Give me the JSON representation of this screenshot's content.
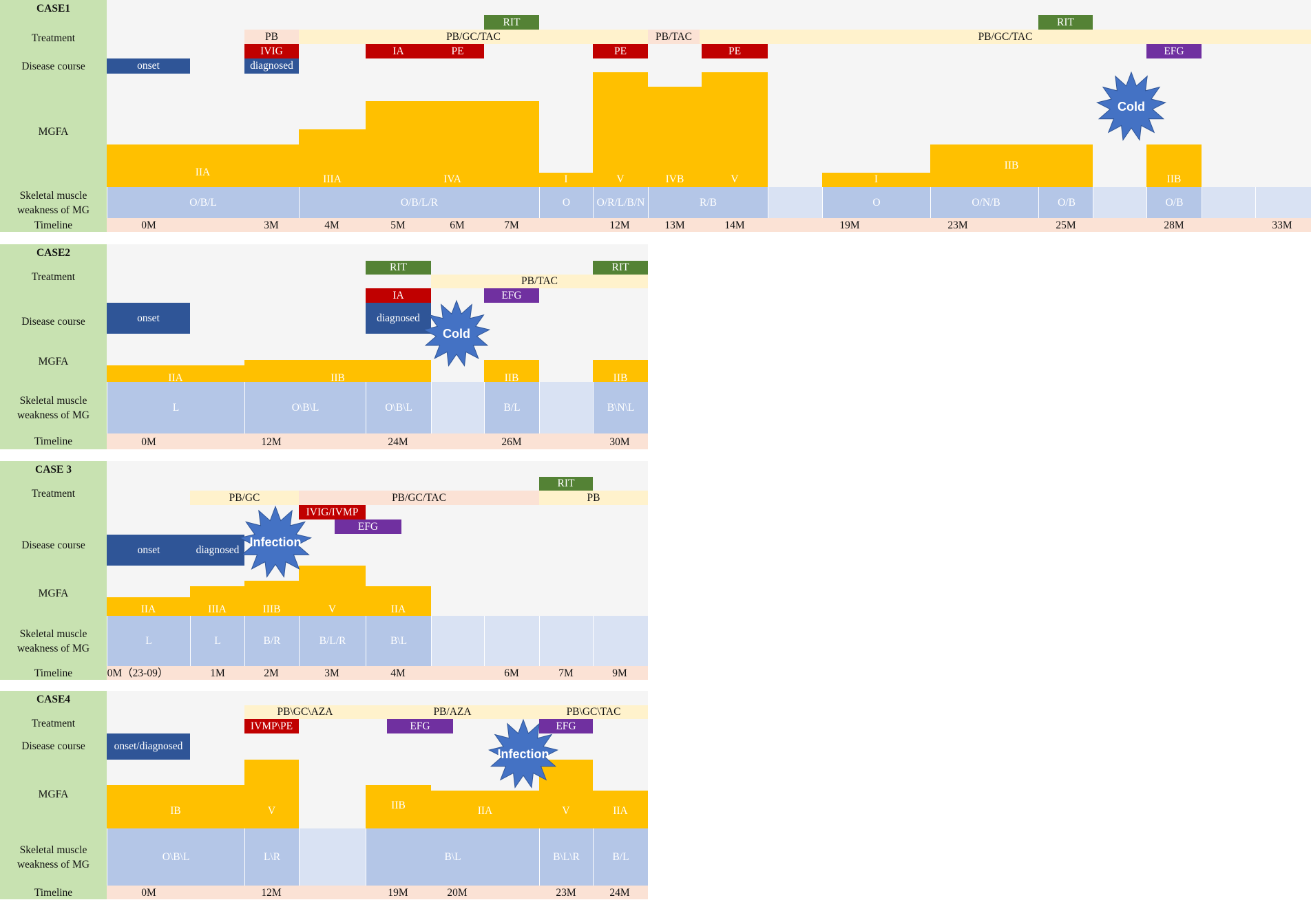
{
  "row_labels": {
    "treatment": "Treatment",
    "disease_course": "Disease course",
    "mgfa": "MGFA",
    "muscle": "Skeletal muscle\nweakness of MG",
    "timeline": "Timeline"
  },
  "colors": {
    "panel_bg": "#f5f5f5",
    "label_bg": "#c8e2b1",
    "light_yellow": "#fff2cc",
    "light_pink": "#fbe2d5",
    "rit_green": "#548235",
    "ivig_red": "#c00000",
    "ia_red": "#c00000",
    "efg_purple": "#7030a0",
    "disease_blue": "#2f5597",
    "mgfa_orange": "#ffc000",
    "muscle_blue": "#b4c6e7",
    "muscle_light": "#d9e2f3",
    "burst_blue": "#4472c4"
  },
  "cases": [
    {
      "title": "CASE1",
      "treatment": [
        {
          "label": "RIT",
          "type": "rit"
        },
        {
          "label": "RIT",
          "type": "rit"
        },
        {
          "label": "PB",
          "type": "pink"
        },
        {
          "label": "PB/GC/TAC",
          "type": "yellow"
        },
        {
          "label": "PB/TAC",
          "type": "pink"
        },
        {
          "label": "PB/GC/TAC",
          "type": "yellow"
        },
        {
          "label": "IVIG",
          "type": "red"
        },
        {
          "label": "IA",
          "type": "red"
        },
        {
          "label": "PE",
          "type": "red"
        },
        {
          "label": "PE",
          "type": "red"
        },
        {
          "label": "PE",
          "type": "red"
        },
        {
          "label": "EFG",
          "type": "purple"
        }
      ],
      "disease": [
        {
          "label": "onset"
        },
        {
          "label": "diagnosed"
        }
      ],
      "mgfa": [
        {
          "label": "IIA",
          "level": 2
        },
        {
          "label": "IIIA",
          "level": 3
        },
        {
          "label": "IVA",
          "level": 4
        },
        {
          "label": "I",
          "level": 1
        },
        {
          "label": "V",
          "level": 5
        },
        {
          "label": "IVB",
          "level": 4
        },
        {
          "label": "V",
          "level": 5
        },
        {
          "label": "I",
          "level": 1
        },
        {
          "label": "IIB",
          "level": 2
        },
        {
          "label": "IIB",
          "level": 2
        }
      ],
      "muscle": [
        "O/B/L",
        "O/B/L/R",
        "O",
        "O/R/L/B/N",
        "R/B",
        "",
        "O",
        "O/N/B",
        "O/B",
        "",
        "O/B",
        "",
        ""
      ],
      "timeline": [
        "0M",
        "3M",
        "4M",
        "5M",
        "6M",
        "7M",
        "12M",
        "13M",
        "14M",
        "19M",
        "23M",
        "25M",
        "28M",
        "33M"
      ],
      "events": [
        {
          "label": "Cold"
        }
      ]
    },
    {
      "title": "CASE2",
      "treatment": [
        {
          "label": "RIT",
          "type": "rit"
        },
        {
          "label": "RIT",
          "type": "rit"
        },
        {
          "label": "PB/TAC",
          "type": "yellow"
        },
        {
          "label": "IA",
          "type": "red"
        },
        {
          "label": "EFG",
          "type": "purple"
        }
      ],
      "disease": [
        {
          "label": "onset"
        },
        {
          "label": "diagnosed"
        }
      ],
      "mgfa": [
        {
          "label": "IIA",
          "level": 2
        },
        {
          "label": "IIB",
          "level": 2
        },
        {
          "label": "IIB",
          "level": 2
        },
        {
          "label": "IIB",
          "level": 2
        }
      ],
      "muscle": [
        "L",
        "O\\B\\L",
        "O\\B\\L",
        "",
        "B/L",
        "",
        "B\\N\\L"
      ],
      "timeline": [
        "0M",
        "12M",
        "24M",
        "26M",
        "30M"
      ],
      "events": [
        {
          "label": "Cold"
        }
      ]
    },
    {
      "title": "CASE 3",
      "treatment": [
        {
          "label": "RIT",
          "type": "rit"
        },
        {
          "label": "PB/GC",
          "type": "yellow"
        },
        {
          "label": "PB/GC/TAC",
          "type": "pink"
        },
        {
          "label": "PB",
          "type": "yellow"
        },
        {
          "label": "IVIG/IVMP",
          "type": "red"
        },
        {
          "label": "EFG",
          "type": "purple"
        }
      ],
      "disease": [
        {
          "label": "onset"
        },
        {
          "label": "diagnosed"
        }
      ],
      "mgfa": [
        {
          "label": "IIA",
          "level": 2
        },
        {
          "label": "IIIA",
          "level": 3
        },
        {
          "label": "IIIB",
          "level": 3
        },
        {
          "label": "V",
          "level": 5
        },
        {
          "label": "IIA",
          "level": 2
        }
      ],
      "muscle": [
        "L",
        "L",
        "B/R",
        "B/L/R",
        "B\\L",
        "",
        "",
        "",
        ""
      ],
      "timeline": [
        "0M（23-09）",
        "1M",
        "2M",
        "3M",
        "4M",
        "6M",
        "7M",
        "9M"
      ],
      "events": [
        {
          "label": "Infection"
        }
      ]
    },
    {
      "title": "CASE4",
      "treatment": [
        {
          "label": "PB\\GC\\AZA",
          "type": "yellow"
        },
        {
          "label": "PB/AZA",
          "type": "yellow"
        },
        {
          "label": "PB\\GC\\TAC",
          "type": "yellow"
        },
        {
          "label": "IVMP\\PE",
          "type": "red"
        },
        {
          "label": "EFG",
          "type": "purple"
        },
        {
          "label": "EFG",
          "type": "purple"
        }
      ],
      "disease": [
        {
          "label": "onset/diagnosed"
        }
      ],
      "mgfa": [
        {
          "label": "IB",
          "level": 1
        },
        {
          "label": "V",
          "level": 5
        },
        {
          "label": "IIB",
          "level": 2
        },
        {
          "label": "IIA",
          "level": 2
        },
        {
          "label": "V",
          "level": 5
        },
        {
          "label": "IIA",
          "level": 2
        }
      ],
      "muscle": [
        "O\\B\\L",
        "L\\R",
        "",
        "B\\L",
        "B\\L\\R",
        "B/L"
      ],
      "timeline": [
        "0M",
        "12M",
        "19M",
        "20M",
        "23M",
        "24M"
      ],
      "events": [
        {
          "label": "Infection"
        }
      ]
    }
  ]
}
